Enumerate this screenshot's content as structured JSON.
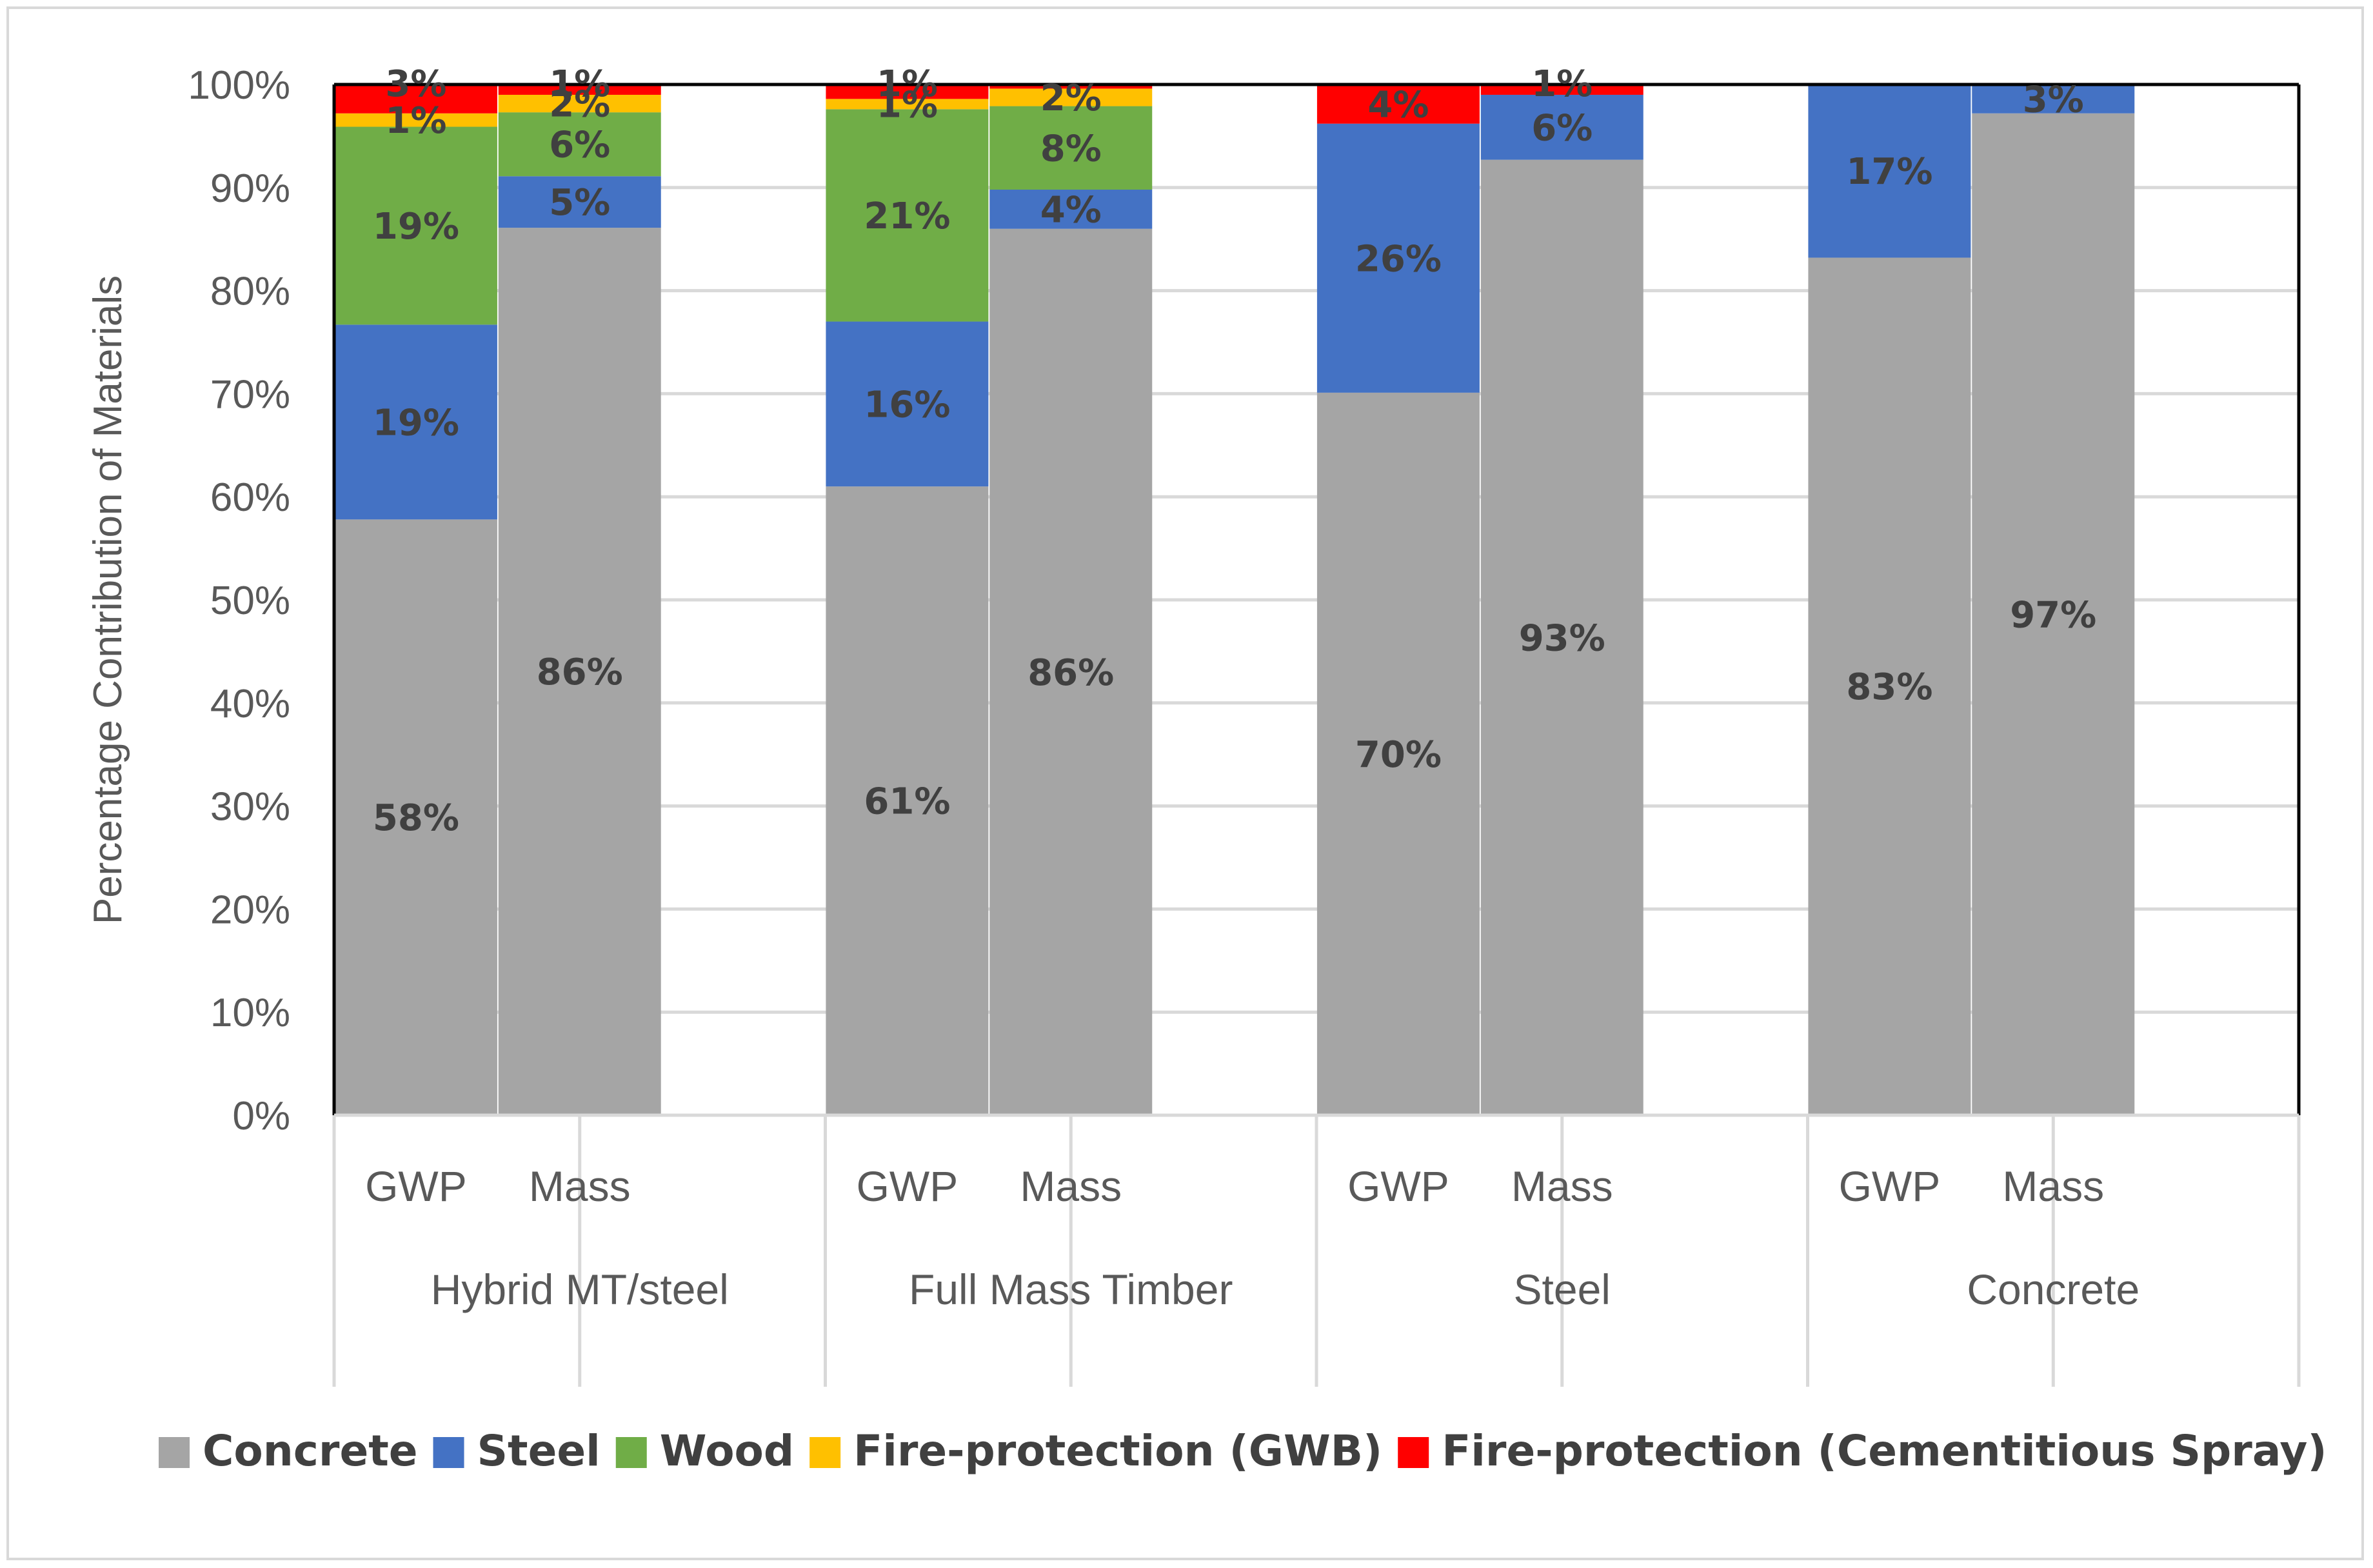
{
  "chart_data": {
    "type": "bar",
    "stacked": true,
    "percent_stacked": true,
    "title": "",
    "xlabel": "",
    "ylabel": "Percentage Contribution of Materials",
    "ylim": [
      0,
      100
    ],
    "yticks": [
      "0%",
      "10%",
      "20%",
      "30%",
      "40%",
      "50%",
      "60%",
      "70%",
      "80%",
      "90%",
      "100%"
    ],
    "grid": true,
    "legend_position": "bottom",
    "groups": [
      {
        "name": "Hybrid MT/steel",
        "bars": [
          "GWP",
          "Mass"
        ]
      },
      {
        "name": "Full Mass Timber",
        "bars": [
          "GWP",
          "Mass"
        ]
      },
      {
        "name": "Steel",
        "bars": [
          "GWP",
          "Mass"
        ]
      },
      {
        "name": "Concrete",
        "bars": [
          "GWP",
          "Mass"
        ]
      }
    ],
    "categories": [
      "GWP",
      "Mass",
      "GWP",
      "Mass",
      "GWP",
      "Mass",
      "GWP",
      "Mass"
    ],
    "series": [
      {
        "name": "Concrete",
        "color": "#a5a5a5",
        "values": [
          57.8,
          86.1,
          61.0,
          86.0,
          70.1,
          92.7,
          83.2,
          97.2
        ],
        "labels": [
          "58%",
          "86%",
          "61%",
          "86%",
          "70%",
          "93%",
          "83%",
          "97%"
        ]
      },
      {
        "name": "Steel",
        "color": "#4472c4",
        "values": [
          18.9,
          5.0,
          16.0,
          3.8,
          26.1,
          6.3,
          16.8,
          2.8
        ],
        "labels": [
          "19%",
          "5%",
          "16%",
          "4%",
          "26%",
          "6%",
          "17%",
          "3%"
        ]
      },
      {
        "name": "Wood",
        "color": "#70ad47",
        "values": [
          19.2,
          6.2,
          20.6,
          8.1,
          0,
          0,
          0,
          0
        ],
        "labels": [
          "19%",
          "6%",
          "21%",
          "8%",
          "",
          "",
          "",
          ""
        ]
      },
      {
        "name": "Fire-protection (GWB)",
        "color": "#ffc000",
        "values": [
          1.3,
          1.7,
          1.0,
          1.7,
          0,
          0,
          0,
          0
        ],
        "labels": [
          "1%",
          "2%",
          "1%",
          "2%",
          "",
          "",
          "",
          ""
        ]
      },
      {
        "name": "Fire-protection (Cementitious Spray)",
        "color": "#ff0000",
        "values": [
          2.8,
          1.0,
          1.4,
          0.4,
          3.8,
          1.0,
          0,
          0
        ],
        "labels": [
          "3%",
          "1%",
          "1%",
          "",
          "4%",
          "1%",
          "",
          ""
        ]
      }
    ]
  }
}
